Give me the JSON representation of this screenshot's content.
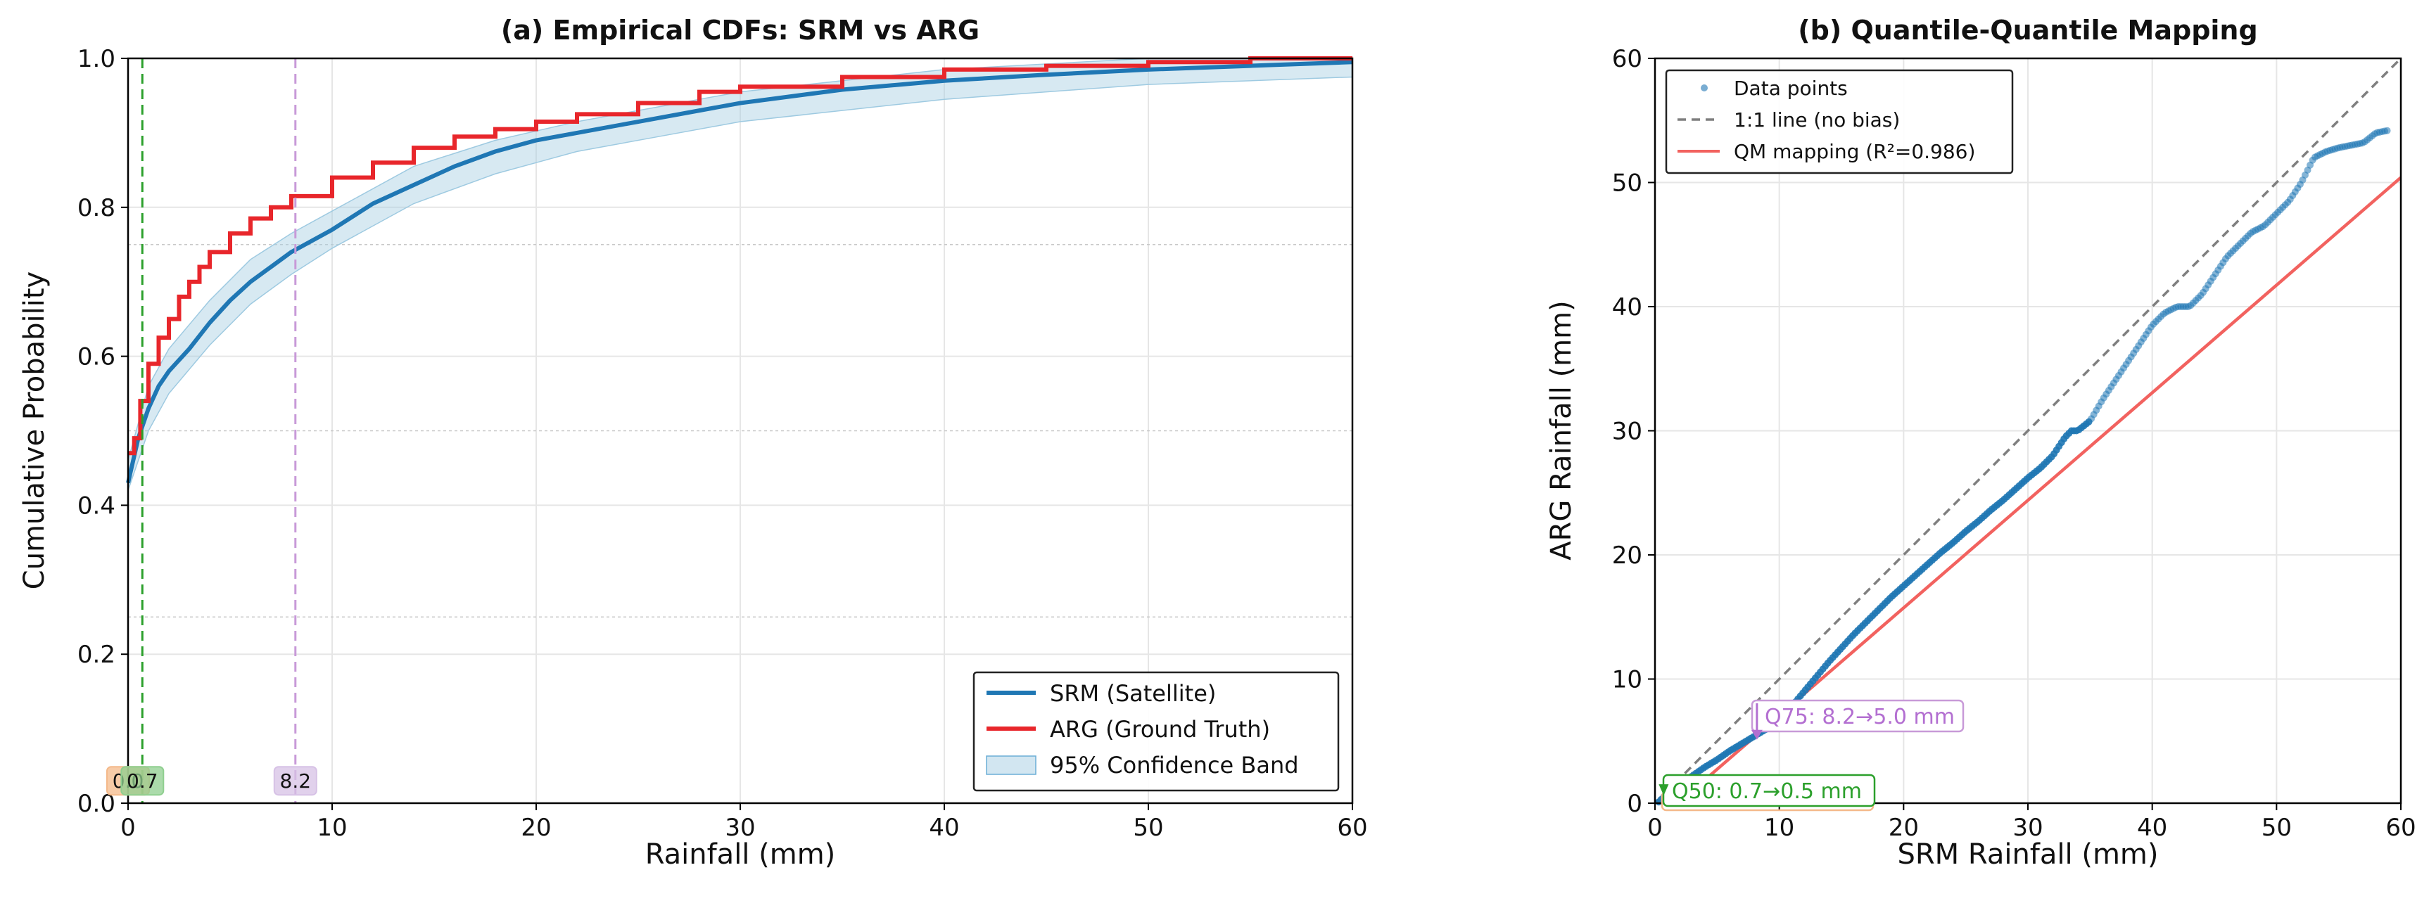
{
  "chart_data": [
    {
      "type": "line",
      "title": "(a) Empirical CDFs: SRM vs ARG",
      "xlabel": "Rainfall (mm)",
      "ylabel": "Cumulative Probability",
      "xlim": [
        0,
        60
      ],
      "ylim": [
        0,
        1.0
      ],
      "x_ticks": [
        "0",
        "10",
        "20",
        "30",
        "40",
        "50",
        "60"
      ],
      "y_ticks": [
        "0.0",
        "0.2",
        "0.4",
        "0.6",
        "0.8",
        "1.0"
      ],
      "grid": true,
      "legend_position": "lower-right",
      "series": [
        {
          "name": "SRM (Satellite)",
          "color": "#1f77b4",
          "x": [
            0,
            0.5,
            1,
            1.5,
            2,
            3,
            4,
            5,
            6,
            7,
            8,
            10,
            12,
            14,
            16,
            18,
            20,
            22,
            25,
            28,
            30,
            35,
            40,
            45,
            50,
            55,
            60
          ],
          "y": [
            0.43,
            0.49,
            0.53,
            0.56,
            0.58,
            0.61,
            0.645,
            0.675,
            0.7,
            0.72,
            0.74,
            0.77,
            0.805,
            0.83,
            0.855,
            0.875,
            0.89,
            0.9,
            0.915,
            0.93,
            0.94,
            0.958,
            0.97,
            0.978,
            0.985,
            0.99,
            0.995
          ]
        },
        {
          "name": "ARG (Ground Truth)",
          "color": "#e8262b",
          "x": [
            0,
            0.3,
            0.6,
            1.0,
            1.5,
            2.0,
            2.5,
            3.0,
            3.5,
            4.0,
            5.0,
            6.0,
            7.0,
            8.0,
            10,
            12,
            14,
            16,
            18,
            20,
            22,
            25,
            28,
            30,
            35,
            40,
            45,
            50,
            55,
            60
          ],
          "y": [
            0.47,
            0.49,
            0.54,
            0.59,
            0.625,
            0.65,
            0.68,
            0.7,
            0.72,
            0.74,
            0.765,
            0.785,
            0.8,
            0.815,
            0.84,
            0.86,
            0.88,
            0.895,
            0.905,
            0.915,
            0.925,
            0.94,
            0.955,
            0.962,
            0.975,
            0.985,
            0.99,
            0.995,
            1.0,
            1.0
          ]
        }
      ],
      "confidence_band": {
        "name": "95% Confidence Band",
        "color": "#a6cee3",
        "x": [
          0,
          1,
          2,
          4,
          6,
          8,
          10,
          14,
          18,
          22,
          26,
          30,
          40,
          50,
          60
        ],
        "lower": [
          0.42,
          0.5,
          0.55,
          0.615,
          0.67,
          0.71,
          0.745,
          0.805,
          0.845,
          0.875,
          0.895,
          0.915,
          0.945,
          0.965,
          0.975
        ],
        "upper": [
          0.46,
          0.56,
          0.61,
          0.675,
          0.73,
          0.765,
          0.795,
          0.855,
          0.89,
          0.915,
          0.935,
          0.955,
          0.985,
          1.0,
          1.0
        ]
      },
      "reference_lines": {
        "vertical": [
          {
            "x": 0.7,
            "color": "#2ca02c",
            "label": "0.7",
            "label_color": "#8fcf8f"
          },
          {
            "x": 8.2,
            "color": "#c89ad8",
            "label": "8.2",
            "label_color": "#d7c2e6"
          }
        ],
        "horizontal_y": [
          0.25,
          0.5,
          0.75
        ],
        "extra_labels": [
          {
            "x": 0.0,
            "label": "0.0",
            "label_color": "#f4b98a"
          }
        ]
      }
    },
    {
      "type": "scatter",
      "title": "(b) Quantile-Quantile Mapping",
      "xlabel": "SRM Rainfall (mm)",
      "ylabel": "ARG Rainfall (mm)",
      "xlim": [
        0,
        60
      ],
      "ylim": [
        0,
        60
      ],
      "x_ticks": [
        "0",
        "10",
        "20",
        "30",
        "40",
        "50",
        "60"
      ],
      "y_ticks": [
        "0",
        "10",
        "20",
        "30",
        "40",
        "50",
        "60"
      ],
      "grid": true,
      "legend_position": "upper-left",
      "series": [
        {
          "name": "Data points",
          "color": "#1f77b4",
          "x": [
            0.3,
            0.7,
            1,
            2,
            3,
            4,
            5,
            6,
            7,
            8,
            9,
            10,
            11,
            12,
            13,
            14,
            15,
            16,
            17,
            18,
            19,
            20,
            21,
            22,
            23,
            24,
            25,
            26,
            27,
            28,
            29,
            30,
            31,
            32,
            33,
            33.5,
            34,
            35,
            36,
            37,
            38,
            39,
            40,
            41,
            42,
            43,
            44,
            45,
            46,
            47,
            48,
            49,
            50,
            51,
            52,
            53,
            54,
            55,
            56,
            57,
            58,
            59
          ],
          "y": [
            0.1,
            0.5,
            0.8,
            1.5,
            2.2,
            2.9,
            3.5,
            4.2,
            4.8,
            5.4,
            6.0,
            6.7,
            7.8,
            9.0,
            10.2,
            11.4,
            12.5,
            13.6,
            14.6,
            15.6,
            16.6,
            17.5,
            18.4,
            19.3,
            20.2,
            21.0,
            21.9,
            22.7,
            23.6,
            24.4,
            25.3,
            26.2,
            27.0,
            28.0,
            29.5,
            30.0,
            30.0,
            30.8,
            32.5,
            34.0,
            35.5,
            37.0,
            38.5,
            39.5,
            40.0,
            40.0,
            41.0,
            42.5,
            44.0,
            45.0,
            46.0,
            46.5,
            47.5,
            48.5,
            50.0,
            52.0,
            52.5,
            52.8,
            53.0,
            53.2,
            54.0,
            54.2
          ]
        },
        {
          "name": "1:1 line (no bias)",
          "color": "#7f7f7f",
          "x": [
            0,
            60
          ],
          "y": [
            0,
            60
          ]
        },
        {
          "name": "QM mapping (R²=0.986)",
          "color": "#f2625f",
          "x": [
            0,
            60
          ],
          "y": [
            -1.6,
            50.4
          ]
        }
      ],
      "annotations": [
        {
          "text": "Q75: 8.2→5.0 mm",
          "x": 8.2,
          "y": 5.0,
          "color": "#b36fd1"
        },
        {
          "text": "Q50: 0.7→0.5 mm",
          "x": 0.7,
          "y": 0.5,
          "color": "#2ca02c"
        }
      ]
    }
  ]
}
